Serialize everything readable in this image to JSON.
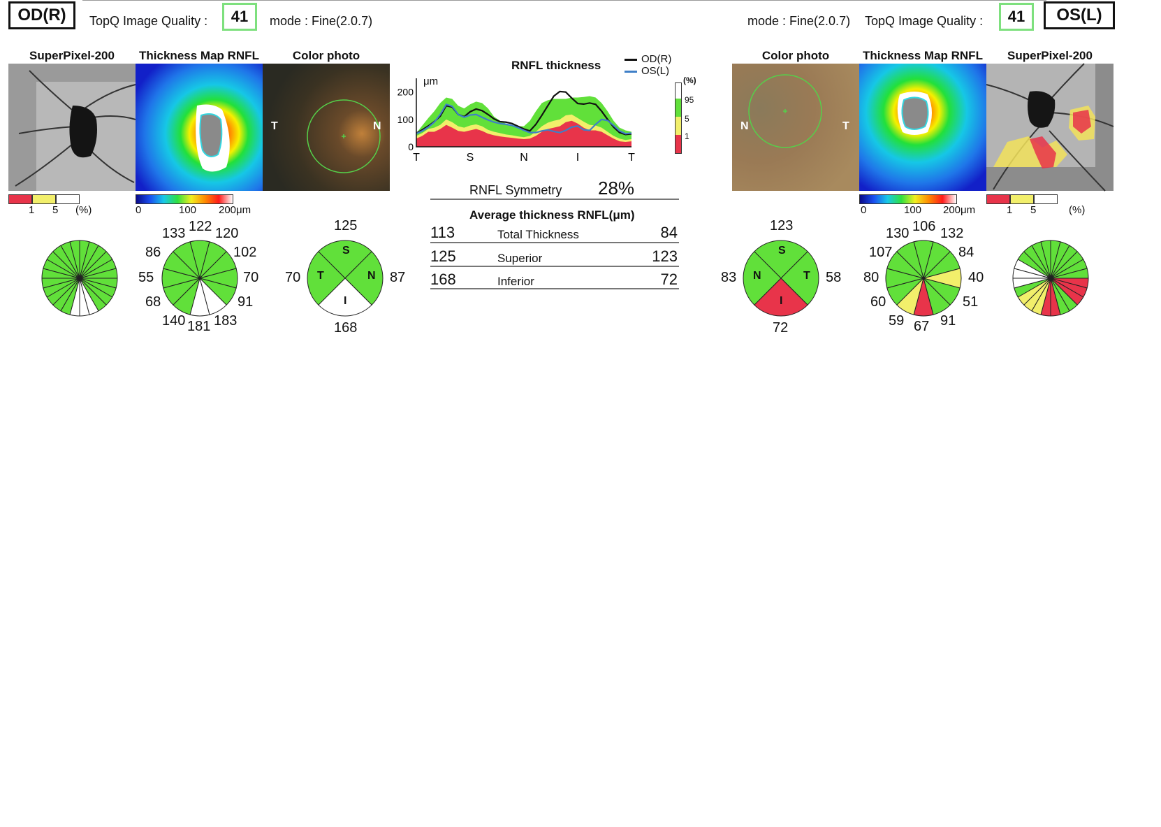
{
  "top_line_visible": true,
  "od": {
    "eye_label": "OD(R)",
    "quality_label": "TopQ Image Quality :",
    "quality_value": "41",
    "mode": "mode : Fine(2.0.7)",
    "titles": {
      "superpixel": "SuperPixel-200",
      "thickness_map": "Thickness Map RNFL",
      "color_photo": "Color photo"
    },
    "photo_labels": {
      "left": "T",
      "right": "N"
    },
    "pct_scale": {
      "a": "1",
      "b": "5",
      "unit": "(%)"
    },
    "um_scale": {
      "a": "0",
      "b": "100",
      "c": "200μm"
    },
    "clock_values": [
      "133",
      "122",
      "120",
      "86",
      "102",
      "55",
      "70",
      "68",
      "91",
      "140",
      "181",
      "183"
    ],
    "quadrant": {
      "top": "125",
      "left": "70",
      "right": "87",
      "bottom": "168",
      "S": "S",
      "T": "T",
      "N": "N",
      "I": "I"
    }
  },
  "os": {
    "eye_label": "OS(L)",
    "quality_label": "TopQ Image Quality :",
    "quality_value": "41",
    "mode": "mode : Fine(2.0.7)",
    "titles": {
      "superpixel": "SuperPixel-200",
      "thickness_map": "Thickness Map RNFL",
      "color_photo": "Color photo"
    },
    "photo_labels": {
      "left": "N",
      "right": "T"
    },
    "pct_scale": {
      "a": "1",
      "b": "5",
      "unit": "(%)"
    },
    "um_scale": {
      "a": "0",
      "b": "100",
      "c": "200μm"
    },
    "clock_values": [
      "130",
      "106",
      "132",
      "107",
      "84",
      "80",
      "40",
      "60",
      "51",
      "59",
      "67",
      "91"
    ],
    "quadrant": {
      "top": "123",
      "left": "83",
      "right": "58",
      "bottom": "72",
      "S": "S",
      "N": "N",
      "T": "T",
      "I": "I"
    }
  },
  "center": {
    "chart_title": "RNFL thickness",
    "legend_od": "OD(R)",
    "legend_os": "OS(L)",
    "unit": "μm",
    "pct_label": "(%)",
    "pct_ticks": [
      "95",
      "5",
      "1"
    ],
    "symmetry_label": "RNFL Symmetry",
    "symmetry_value": "28%",
    "avg_title": "Average thickness RNFL(μm)",
    "rows": [
      {
        "od": "113",
        "label": "Total Thickness",
        "os": "84"
      },
      {
        "od": "125",
        "label": "Superior",
        "os": "123"
      },
      {
        "od": "168",
        "label": "Inferior",
        "os": "72"
      }
    ]
  },
  "chart_data": {
    "type": "line",
    "title": "RNFL thickness",
    "ylabel": "μm",
    "ylim": [
      0,
      240
    ],
    "y_ticks": [
      0,
      100,
      200
    ],
    "x_labels": [
      "T",
      "S",
      "N",
      "I",
      "T"
    ],
    "x": [
      0,
      10,
      20,
      30,
      40,
      50,
      60,
      70,
      80,
      90,
      100,
      110,
      120,
      130,
      140,
      150,
      160,
      170,
      180,
      190,
      200,
      210,
      220,
      230,
      240,
      250,
      260,
      270,
      280,
      290,
      300,
      310,
      320,
      330,
      340,
      350,
      360
    ],
    "series": [
      {
        "name": "OD(R)",
        "color": "#111111",
        "values": [
          50,
          62,
          76,
          92,
          112,
          150,
          145,
          118,
          110,
          128,
          138,
          132,
          118,
          102,
          92,
          90,
          85,
          75,
          65,
          58,
          82,
          115,
          150,
          185,
          202,
          200,
          178,
          158,
          156,
          160,
          155,
          130,
          100,
          72,
          52,
          45,
          47
        ]
      },
      {
        "name": "OS(L)",
        "color": "#3f7fc7",
        "values": [
          48,
          58,
          72,
          90,
          118,
          155,
          148,
          118,
          108,
          116,
          118,
          108,
          98,
          90,
          85,
          82,
          78,
          70,
          60,
          52,
          52,
          58,
          62,
          56,
          52,
          60,
          72,
          76,
          62,
          60,
          82,
          100,
          96,
          78,
          58,
          48,
          50
        ]
      }
    ],
    "bands": {
      "p1": [
        30,
        40,
        55,
        55,
        65,
        80,
        70,
        58,
        55,
        60,
        65,
        58,
        48,
        42,
        38,
        35,
        33,
        30,
        28,
        30,
        40,
        55,
        65,
        70,
        75,
        90,
        95,
        85,
        70,
        60,
        60,
        55,
        42,
        30,
        20,
        18,
        20
      ],
      "p5": [
        40,
        50,
        65,
        70,
        80,
        100,
        90,
        75,
        70,
        78,
        82,
        75,
        62,
        55,
        50,
        45,
        42,
        38,
        35,
        40,
        55,
        75,
        88,
        95,
        100,
        115,
        118,
        105,
        92,
        80,
        78,
        70,
        55,
        40,
        30,
        25,
        28
      ],
      "p95": [
        50,
        78,
        105,
        130,
        160,
        180,
        175,
        150,
        140,
        155,
        165,
        160,
        140,
        110,
        95,
        85,
        80,
        75,
        75,
        95,
        130,
        160,
        170,
        175,
        175,
        175,
        180,
        180,
        182,
        185,
        180,
        160,
        130,
        95,
        70,
        60,
        55
      ]
    },
    "legend_position": "top-right",
    "grid": false
  }
}
